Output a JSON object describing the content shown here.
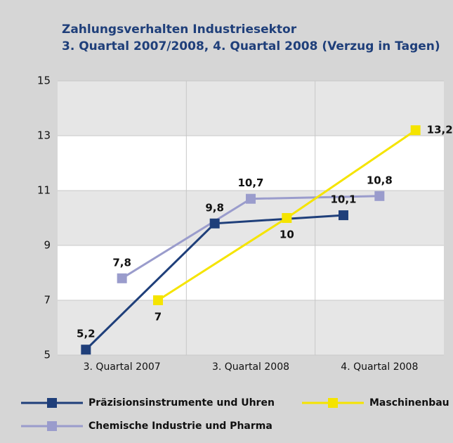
{
  "chart_data": {
    "type": "line",
    "title": "Zahlungsverhalten Industriesektor",
    "subtitle": "3. Quartal 2007/2008, 4. Quartal 2008 (Verzug in Tagen)",
    "categories": [
      "3. Quartal 2007",
      "3. Quartal 2008",
      "4. Quartal 2008"
    ],
    "series": [
      {
        "name": "Präzisionsinstrumente und Uhren",
        "color": "#1f3f7a",
        "values": [
          5.2,
          9.8,
          10.1
        ],
        "value_labels": [
          "5,2",
          "9,8",
          "10,1"
        ]
      },
      {
        "name": "Maschinenbau",
        "color": "#f5e400",
        "values": [
          7,
          10,
          13.2
        ],
        "value_labels": [
          "7",
          "10",
          "13,2"
        ]
      },
      {
        "name": "Chemische Industrie und Pharma",
        "color": "#9a9ccc",
        "values": [
          7.8,
          10.7,
          10.8
        ],
        "value_labels": [
          "7,8",
          "10,7",
          "10,8"
        ]
      }
    ],
    "ylim": [
      5,
      15
    ],
    "yticks": [
      5,
      7,
      9,
      11,
      13,
      15
    ],
    "grid": true
  }
}
